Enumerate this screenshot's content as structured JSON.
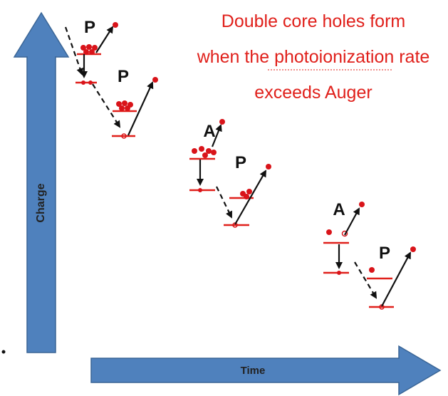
{
  "title": {
    "lines": [
      "Double core holes form",
      "when the photoionization rate",
      "exceeds Auger"
    ]
  },
  "axes": {
    "y_label": "Charge",
    "x_label": "Time"
  },
  "processes": [
    {
      "label": "P"
    },
    {
      "label": "P"
    },
    {
      "label": "A"
    },
    {
      "label": "P"
    },
    {
      "label": "A"
    },
    {
      "label": "P"
    }
  ]
}
